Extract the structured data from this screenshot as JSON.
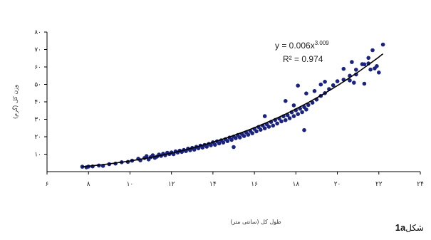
{
  "chart_data": {
    "type": "scatter",
    "title": "",
    "xlabel": "طول کل (سانتی متر)",
    "ylabel": "وزن کل (گرم)",
    "xlim": [
      6,
      24
    ],
    "ylim": [
      0,
      80
    ],
    "xticks": [
      "۶",
      "۸",
      "۱۰",
      "۱۲",
      "۱۴",
      "۱۶",
      "۱۸",
      "۲۰",
      "۲۲",
      "۲۴"
    ],
    "yticks": [
      "۱۰",
      "۲۰",
      "۳۰",
      "۴۰",
      "۵۰",
      "۶۰",
      "۷۰",
      "۸۰"
    ],
    "grid": false,
    "marker_color": "#1a237e",
    "trendline": {
      "type": "power",
      "a": 0.006,
      "b": 3.009,
      "color": "#000000"
    },
    "equation_text": "y = 0.006x",
    "equation_exponent": "3.009",
    "r2_text": "R² = 0.974",
    "series": [
      {
        "points": [
          [
            7.7,
            2.8
          ],
          [
            7.9,
            2.5
          ],
          [
            8.0,
            2.9
          ],
          [
            8.2,
            3.0
          ],
          [
            8.5,
            3.5
          ],
          [
            8.7,
            3.3
          ],
          [
            9.0,
            4.3
          ],
          [
            9.3,
            4.6
          ],
          [
            9.6,
            5.4
          ],
          [
            9.9,
            5.6
          ],
          [
            10.1,
            6.3
          ],
          [
            10.4,
            7.4
          ],
          [
            10.5,
            6.5
          ],
          [
            10.7,
            7.8
          ],
          [
            10.8,
            8.9
          ],
          [
            10.9,
            7.0
          ],
          [
            11.0,
            8.3
          ],
          [
            11.1,
            9.4
          ],
          [
            11.2,
            7.9
          ],
          [
            11.3,
            8.6
          ],
          [
            11.4,
            9.8
          ],
          [
            11.5,
            9.0
          ],
          [
            11.6,
            10.3
          ],
          [
            11.7,
            9.4
          ],
          [
            11.8,
            10.8
          ],
          [
            11.9,
            10.1
          ],
          [
            12.0,
            11.0
          ],
          [
            12.1,
            10.0
          ],
          [
            12.2,
            11.6
          ],
          [
            12.3,
            11.0
          ],
          [
            12.4,
            12.0
          ],
          [
            12.5,
            11.3
          ],
          [
            12.6,
            12.4
          ],
          [
            12.7,
            11.8
          ],
          [
            12.8,
            13.2
          ],
          [
            12.9,
            12.3
          ],
          [
            13.0,
            13.6
          ],
          [
            13.1,
            12.6
          ],
          [
            13.2,
            14.2
          ],
          [
            13.3,
            13.4
          ],
          [
            13.4,
            14.9
          ],
          [
            13.5,
            13.8
          ],
          [
            13.6,
            15.3
          ],
          [
            13.7,
            14.3
          ],
          [
            13.8,
            15.9
          ],
          [
            13.9,
            15.1
          ],
          [
            14.0,
            16.8
          ],
          [
            14.1,
            15.4
          ],
          [
            14.2,
            17.4
          ],
          [
            14.3,
            16.2
          ],
          [
            14.4,
            17.9
          ],
          [
            14.5,
            16.7
          ],
          [
            14.6,
            18.6
          ],
          [
            14.7,
            17.5
          ],
          [
            14.8,
            19.5
          ],
          [
            14.9,
            18.2
          ],
          [
            15.0,
            20.1
          ],
          [
            15.1,
            19.2
          ],
          [
            15.2,
            21.0
          ],
          [
            15.3,
            19.6
          ],
          [
            15.4,
            21.6
          ],
          [
            15.5,
            20.4
          ],
          [
            15.6,
            22.5
          ],
          [
            15.7,
            21.2
          ],
          [
            15.8,
            23.3
          ],
          [
            15.9,
            22.0
          ],
          [
            16.0,
            24.5
          ],
          [
            16.1,
            23.1
          ],
          [
            16.2,
            25.6
          ],
          [
            16.3,
            24.0
          ],
          [
            16.4,
            26.4
          ],
          [
            16.5,
            24.8
          ],
          [
            16.6,
            27.1
          ],
          [
            16.7,
            25.7
          ],
          [
            16.8,
            28.5
          ],
          [
            16.9,
            26.4
          ],
          [
            17.0,
            29.6
          ],
          [
            17.1,
            27.6
          ],
          [
            17.2,
            30.4
          ],
          [
            17.3,
            28.8
          ],
          [
            17.4,
            31.7
          ],
          [
            17.5,
            29.5
          ],
          [
            17.6,
            32.4
          ],
          [
            17.7,
            30.6
          ],
          [
            17.8,
            34.0
          ],
          [
            17.9,
            31.8
          ],
          [
            18.0,
            35.2
          ],
          [
            18.1,
            33.0
          ],
          [
            18.2,
            36.1
          ],
          [
            18.3,
            34.1
          ],
          [
            18.4,
            37.0
          ],
          [
            18.5,
            35.6
          ],
          [
            18.6,
            38.2
          ],
          [
            18.8,
            39.5
          ],
          [
            19.0,
            41.3
          ],
          [
            19.2,
            43.4
          ],
          [
            19.4,
            45.0
          ],
          [
            19.6,
            47.3
          ],
          [
            19.8,
            49.5
          ],
          [
            20.0,
            51.8
          ],
          [
            20.3,
            52.7
          ],
          [
            20.6,
            55.0
          ],
          [
            20.9,
            58.4
          ],
          [
            21.2,
            61.6
          ],
          [
            21.5,
            65.2
          ],
          [
            22.2,
            72.8
          ],
          [
            17.5,
            40.5
          ],
          [
            18.1,
            49.3
          ],
          [
            18.5,
            44.8
          ],
          [
            18.9,
            46.2
          ],
          [
            19.2,
            49.9
          ],
          [
            17.9,
            38.0
          ],
          [
            16.5,
            31.8
          ],
          [
            20.3,
            58.9
          ],
          [
            20.7,
            62.8
          ],
          [
            20.9,
            55.7
          ],
          [
            21.3,
            50.4
          ],
          [
            20.6,
            52.3
          ],
          [
            20.8,
            51.0
          ],
          [
            19.4,
            51.5
          ],
          [
            21.6,
            58.5
          ],
          [
            21.8,
            59.2
          ],
          [
            22.0,
            56.8
          ],
          [
            21.9,
            60.5
          ],
          [
            21.5,
            62.0
          ],
          [
            21.7,
            69.6
          ],
          [
            21.3,
            61.5
          ],
          [
            18.4,
            23.8
          ],
          [
            15.0,
            14.1
          ]
        ]
      }
    ]
  },
  "caption": {
    "text": "شکل",
    "code": "1a"
  }
}
